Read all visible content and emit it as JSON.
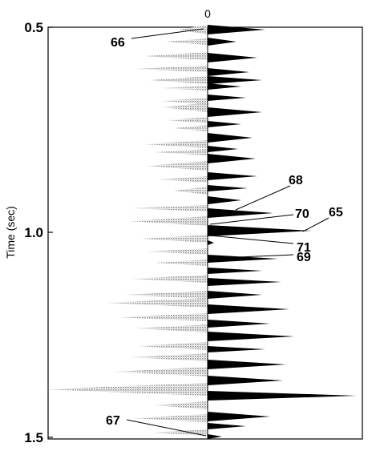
{
  "figure": {
    "zero_label": "0",
    "y_axis_label": "Time (sec)",
    "y_ticks": [
      "0.5",
      "1.0",
      "1.5"
    ],
    "y_range": [
      0.5,
      1.5
    ],
    "callouts": [
      "66",
      "67",
      "68",
      "70",
      "65",
      "71",
      "69"
    ],
    "colors": {
      "positive_fill": "#000000",
      "negative_fill": "#9a9a9a",
      "frame": "#000000"
    }
  }
}
